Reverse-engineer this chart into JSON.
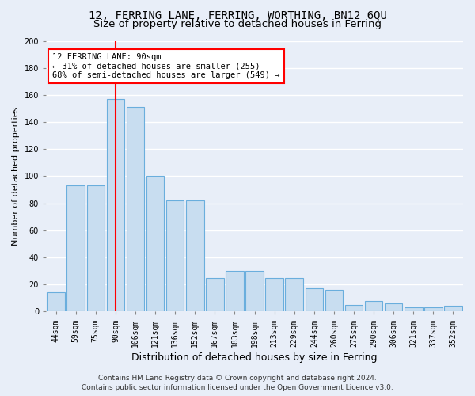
{
  "title": "12, FERRING LANE, FERRING, WORTHING, BN12 6QU",
  "subtitle": "Size of property relative to detached houses in Ferring",
  "xlabel": "Distribution of detached houses by size in Ferring",
  "ylabel": "Number of detached properties",
  "categories": [
    "44sqm",
    "59sqm",
    "75sqm",
    "90sqm",
    "106sqm",
    "121sqm",
    "136sqm",
    "152sqm",
    "167sqm",
    "183sqm",
    "198sqm",
    "213sqm",
    "229sqm",
    "244sqm",
    "260sqm",
    "275sqm",
    "290sqm",
    "306sqm",
    "321sqm",
    "337sqm",
    "352sqm"
  ],
  "values": [
    14,
    93,
    93,
    157,
    151,
    100,
    82,
    82,
    25,
    30,
    30,
    25,
    25,
    17,
    16,
    5,
    8,
    6,
    3,
    3,
    4
  ],
  "bar_color": "#c8ddf0",
  "bar_edge_color": "#6aaedd",
  "marker_x_label": "90sqm",
  "marker_line_color": "red",
  "annotation_text": "12 FERRING LANE: 90sqm\n← 31% of detached houses are smaller (255)\n68% of semi-detached houses are larger (549) →",
  "annotation_box_facecolor": "white",
  "annotation_box_edgecolor": "red",
  "ylim_max": 200,
  "yticks": [
    0,
    20,
    40,
    60,
    80,
    100,
    120,
    140,
    160,
    180,
    200
  ],
  "footer1": "Contains HM Land Registry data © Crown copyright and database right 2024.",
  "footer2": "Contains public sector information licensed under the Open Government Licence v3.0.",
  "bg_color": "#e8eef8",
  "grid_color": "white",
  "title_fontsize": 10,
  "subtitle_fontsize": 9.5,
  "ylabel_fontsize": 8,
  "xlabel_fontsize": 9,
  "tick_fontsize": 7,
  "footer_fontsize": 6.5,
  "annotation_fontsize": 7.5
}
